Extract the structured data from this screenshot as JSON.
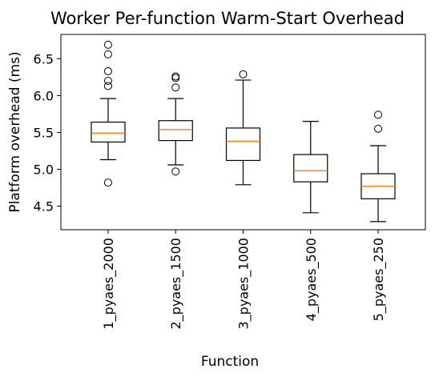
{
  "chart_data": {
    "type": "box",
    "title": "Worker Per-function Warm-Start Overhead",
    "xlabel": "Function",
    "ylabel": "Platform overhead (ms)",
    "ylim": [
      4.18,
      6.83
    ],
    "yticks": [
      4.5,
      5.0,
      5.5,
      6.0,
      6.5
    ],
    "ytick_labels": [
      "4.5",
      "5.0",
      "5.5",
      "6.0",
      "6.5"
    ],
    "grid": false,
    "median_color": "#ff7f0e",
    "box_color": "#000000",
    "categories": [
      "1_pyaes_2000",
      "2_pyaes_1500",
      "3_pyaes_1000",
      "4_pyaes_500",
      "5_pyaes_250"
    ],
    "boxes": [
      {
        "category": "1_pyaes_2000",
        "whisker_low": 5.13,
        "q1": 5.37,
        "median": 5.49,
        "q3": 5.64,
        "whisker_high": 5.96,
        "outliers": [
          4.82,
          6.13,
          6.2,
          6.33,
          6.56,
          6.69
        ]
      },
      {
        "category": "2_pyaes_1500",
        "whisker_low": 5.06,
        "q1": 5.39,
        "median": 5.54,
        "q3": 5.66,
        "whisker_high": 5.96,
        "outliers": [
          4.97,
          6.11,
          6.24,
          6.26
        ]
      },
      {
        "category": "3_pyaes_1000",
        "whisker_low": 4.79,
        "q1": 5.12,
        "median": 5.38,
        "q3": 5.56,
        "whisker_high": 6.21,
        "outliers": [
          6.29
        ]
      },
      {
        "category": "4_pyaes_500",
        "whisker_low": 4.41,
        "q1": 4.83,
        "median": 4.98,
        "q3": 5.2,
        "whisker_high": 5.65,
        "outliers": []
      },
      {
        "category": "5_pyaes_250",
        "whisker_low": 4.29,
        "q1": 4.6,
        "median": 4.77,
        "q3": 4.94,
        "whisker_high": 5.32,
        "outliers": [
          5.55,
          5.74
        ]
      }
    ]
  }
}
